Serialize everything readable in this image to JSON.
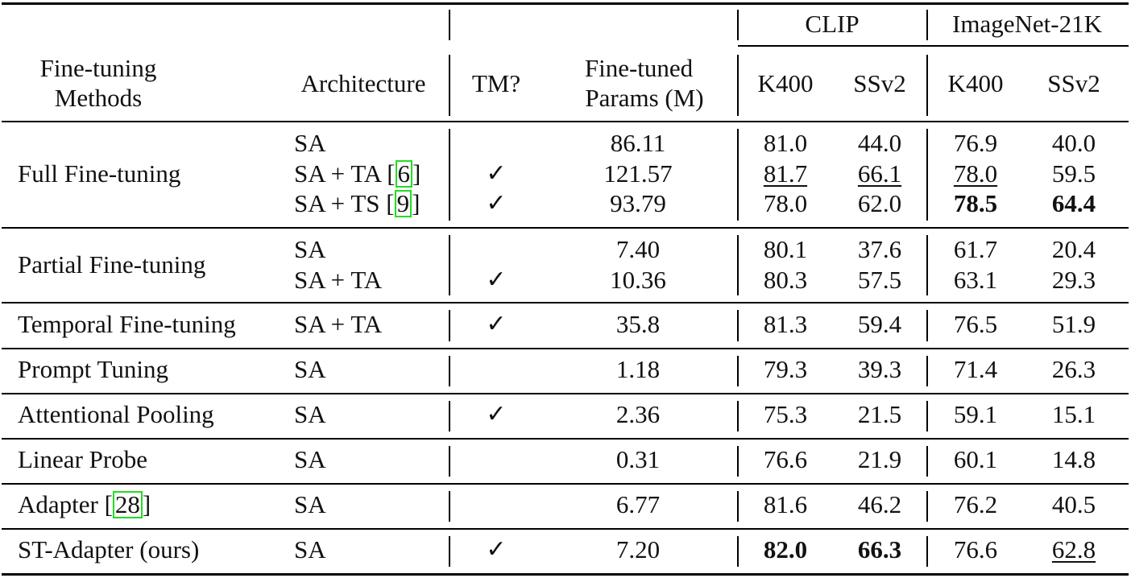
{
  "header": {
    "methods": [
      "Fine-tuning",
      "Methods"
    ],
    "architecture": "Architecture",
    "tm": "TM?",
    "params": [
      "Fine-tuned",
      "Params (M)"
    ],
    "group_clip": "CLIP",
    "group_in21k": "ImageNet-21K",
    "k400": "K400",
    "ssv2": "SSv2"
  },
  "check_glyph": "✓",
  "rows": [
    {
      "method": "Full Fine-tuning",
      "sub": [
        {
          "arch": "SA",
          "cite": "",
          "tm": false,
          "params": "86.11",
          "clip_k400": "81.0",
          "clip_ssv2": "44.0",
          "in_k400": "76.9",
          "in_ssv2": "40.0"
        },
        {
          "arch": "SA + TA [",
          "cite": "6",
          "tm": true,
          "params": "121.57",
          "clip_k400": "81.7",
          "clip_ssv2": "66.1",
          "in_k400": "78.0",
          "in_ssv2": "59.5"
        },
        {
          "arch": "SA + TS [",
          "cite": "9",
          "tm": true,
          "params": "93.79",
          "clip_k400": "78.0",
          "clip_ssv2": "62.0",
          "in_k400": "78.5",
          "in_ssv2": "64.4"
        }
      ]
    },
    {
      "method": "Partial Fine-tuning",
      "sub": [
        {
          "arch": "SA",
          "cite": "",
          "tm": false,
          "params": "7.40",
          "clip_k400": "80.1",
          "clip_ssv2": "37.6",
          "in_k400": "61.7",
          "in_ssv2": "20.4"
        },
        {
          "arch": "SA + TA",
          "cite": "",
          "tm": true,
          "params": "10.36",
          "clip_k400": "80.3",
          "clip_ssv2": "57.5",
          "in_k400": "63.1",
          "in_ssv2": "29.3"
        }
      ]
    },
    {
      "method": "Temporal Fine-tuning",
      "sub": [
        {
          "arch": "SA + TA",
          "cite": "",
          "tm": true,
          "params": "35.8",
          "clip_k400": "81.3",
          "clip_ssv2": "59.4",
          "in_k400": "76.5",
          "in_ssv2": "51.9"
        }
      ]
    },
    {
      "method": "Prompt Tuning",
      "sub": [
        {
          "arch": "SA",
          "cite": "",
          "tm": false,
          "params": "1.18",
          "clip_k400": "79.3",
          "clip_ssv2": "39.3",
          "in_k400": "71.4",
          "in_ssv2": "26.3"
        }
      ]
    },
    {
      "method": "Attentional Pooling",
      "sub": [
        {
          "arch": "SA",
          "cite": "",
          "tm": true,
          "params": "2.36",
          "clip_k400": "75.3",
          "clip_ssv2": "21.5",
          "in_k400": "59.1",
          "in_ssv2": "15.1"
        }
      ]
    },
    {
      "method": "Linear Probe",
      "sub": [
        {
          "arch": "SA",
          "cite": "",
          "tm": false,
          "params": "0.31",
          "clip_k400": "76.6",
          "clip_ssv2": "21.9",
          "in_k400": "60.1",
          "in_ssv2": "14.8"
        }
      ]
    },
    {
      "method": "Adapter [",
      "method_cite": "28",
      "sub": [
        {
          "arch": "SA",
          "cite": "",
          "tm": false,
          "params": "6.77",
          "clip_k400": "81.6",
          "clip_ssv2": "46.2",
          "in_k400": "76.2",
          "in_ssv2": "40.5"
        }
      ]
    },
    {
      "method": "ST-Adapter (ours)",
      "sub": [
        {
          "arch": "SA",
          "cite": "",
          "tm": true,
          "params": "7.20",
          "clip_k400": "82.0",
          "clip_ssv2": "66.3",
          "in_k400": "76.6",
          "in_ssv2": "62.8"
        }
      ]
    }
  ],
  "bold_cells": [
    "0.2.in_k400",
    "0.2.in_ssv2",
    "7.0.clip_k400",
    "7.0.clip_ssv2"
  ],
  "underlined_cells": [
    "0.1.clip_k400",
    "0.1.clip_ssv2",
    "0.1.in_k400",
    "7.0.in_ssv2"
  ]
}
